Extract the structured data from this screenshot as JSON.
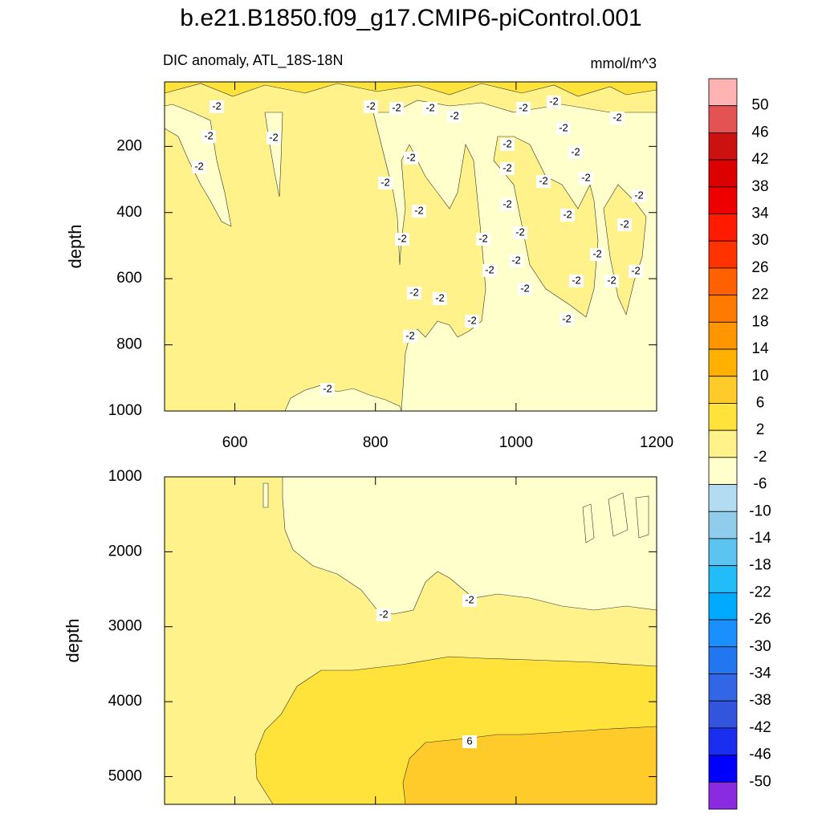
{
  "chart_data": [
    {
      "type": "contour",
      "title": "b.e21.B1850.f09_g17.CMIP6-piControl.001",
      "left_title": "DIC anomaly, ATL_18S-18N",
      "right_title": "mmol/m^3",
      "ylabel": "depth",
      "xlim": [
        500,
        1200
      ],
      "xticks": [
        600,
        800,
        1000,
        1200
      ],
      "ylim": [
        5,
        1000
      ],
      "y_reversed": true,
      "yticks": [
        200,
        400,
        600,
        800,
        1000
      ],
      "contour_labels": [
        -2,
        -2,
        -2,
        -2,
        -2,
        -2,
        -2,
        -2,
        -2,
        -2,
        -2,
        -2,
        -2,
        -2,
        -2,
        -2,
        -2,
        -2,
        -2,
        -2,
        -2,
        -2,
        -2,
        -2,
        -2,
        -2,
        -2,
        -2,
        -2,
        -2,
        -2,
        -2,
        -2,
        -2,
        -2,
        -2,
        -2,
        -2,
        -2,
        -2
      ]
    },
    {
      "type": "contour",
      "ylabel": "depth",
      "xlim": [
        500,
        1200
      ],
      "xticks": [
        600,
        800,
        1000,
        1200
      ],
      "ylim": [
        1000,
        5370
      ],
      "y_reversed": true,
      "yticks": [
        1000,
        2000,
        3000,
        4000,
        5000
      ],
      "contour_labels": [
        -2,
        -2,
        6
      ]
    },
    {
      "type": "colorbar",
      "levels": [
        50,
        46,
        42,
        38,
        34,
        30,
        26,
        22,
        18,
        14,
        10,
        6,
        2,
        -2,
        -6,
        -10,
        -14,
        -18,
        -22,
        -26,
        -30,
        -34,
        -38,
        -42,
        -46,
        -50
      ],
      "colors": [
        "#ffb3b3",
        "#e35353",
        "#cc1111",
        "#dd0000",
        "#ee0000",
        "#ff1a00",
        "#ff3300",
        "#ff6000",
        "#ff7a00",
        "#ff9500",
        "#ffb000",
        "#ffcb2a",
        "#ffe23a",
        "#fff28a",
        "#ffffcc",
        "#b3dcf2",
        "#90cdec",
        "#5bc4f0",
        "#22bcf8",
        "#00aaff",
        "#1a90ff",
        "#2277f0",
        "#3366e6",
        "#3355dd",
        "#1a2ef0",
        "#0000ff",
        "#8a2be2"
      ]
    }
  ]
}
